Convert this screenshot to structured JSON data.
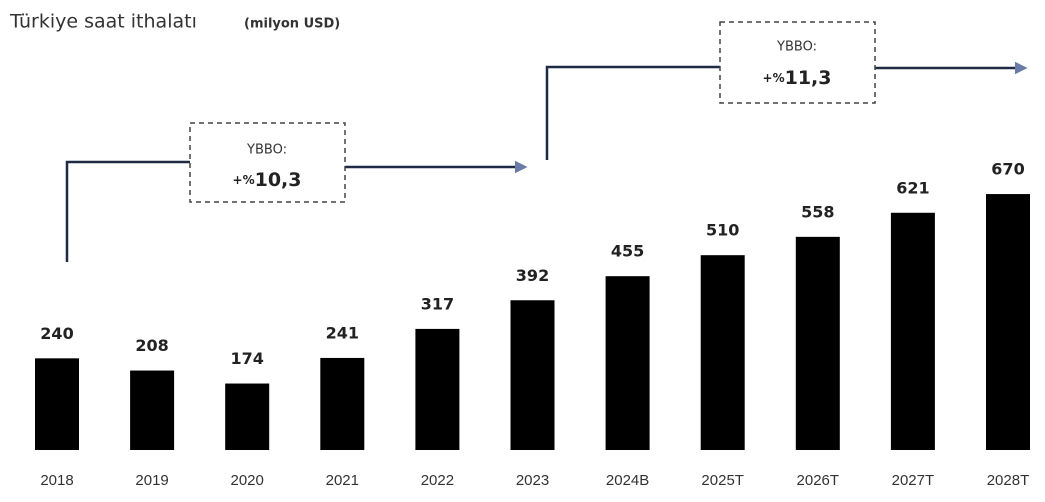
{
  "chart_data": {
    "type": "bar",
    "title": "Türkiye saat ithalatı",
    "unit": "(milyon USD)",
    "categories": [
      "2018",
      "2019",
      "2020",
      "2021",
      "2022",
      "2023",
      "2024B",
      "2025T",
      "2026T",
      "2027T",
      "2028T"
    ],
    "values": [
      240,
      208,
      174,
      241,
      317,
      392,
      455,
      510,
      558,
      621,
      670
    ],
    "color": "#000000",
    "annotations": [
      {
        "label": "YBBO:",
        "prefix": "+%",
        "rate": "10,3"
      },
      {
        "label": "YBBO:",
        "prefix": "+%",
        "rate": "11,3"
      }
    ]
  }
}
